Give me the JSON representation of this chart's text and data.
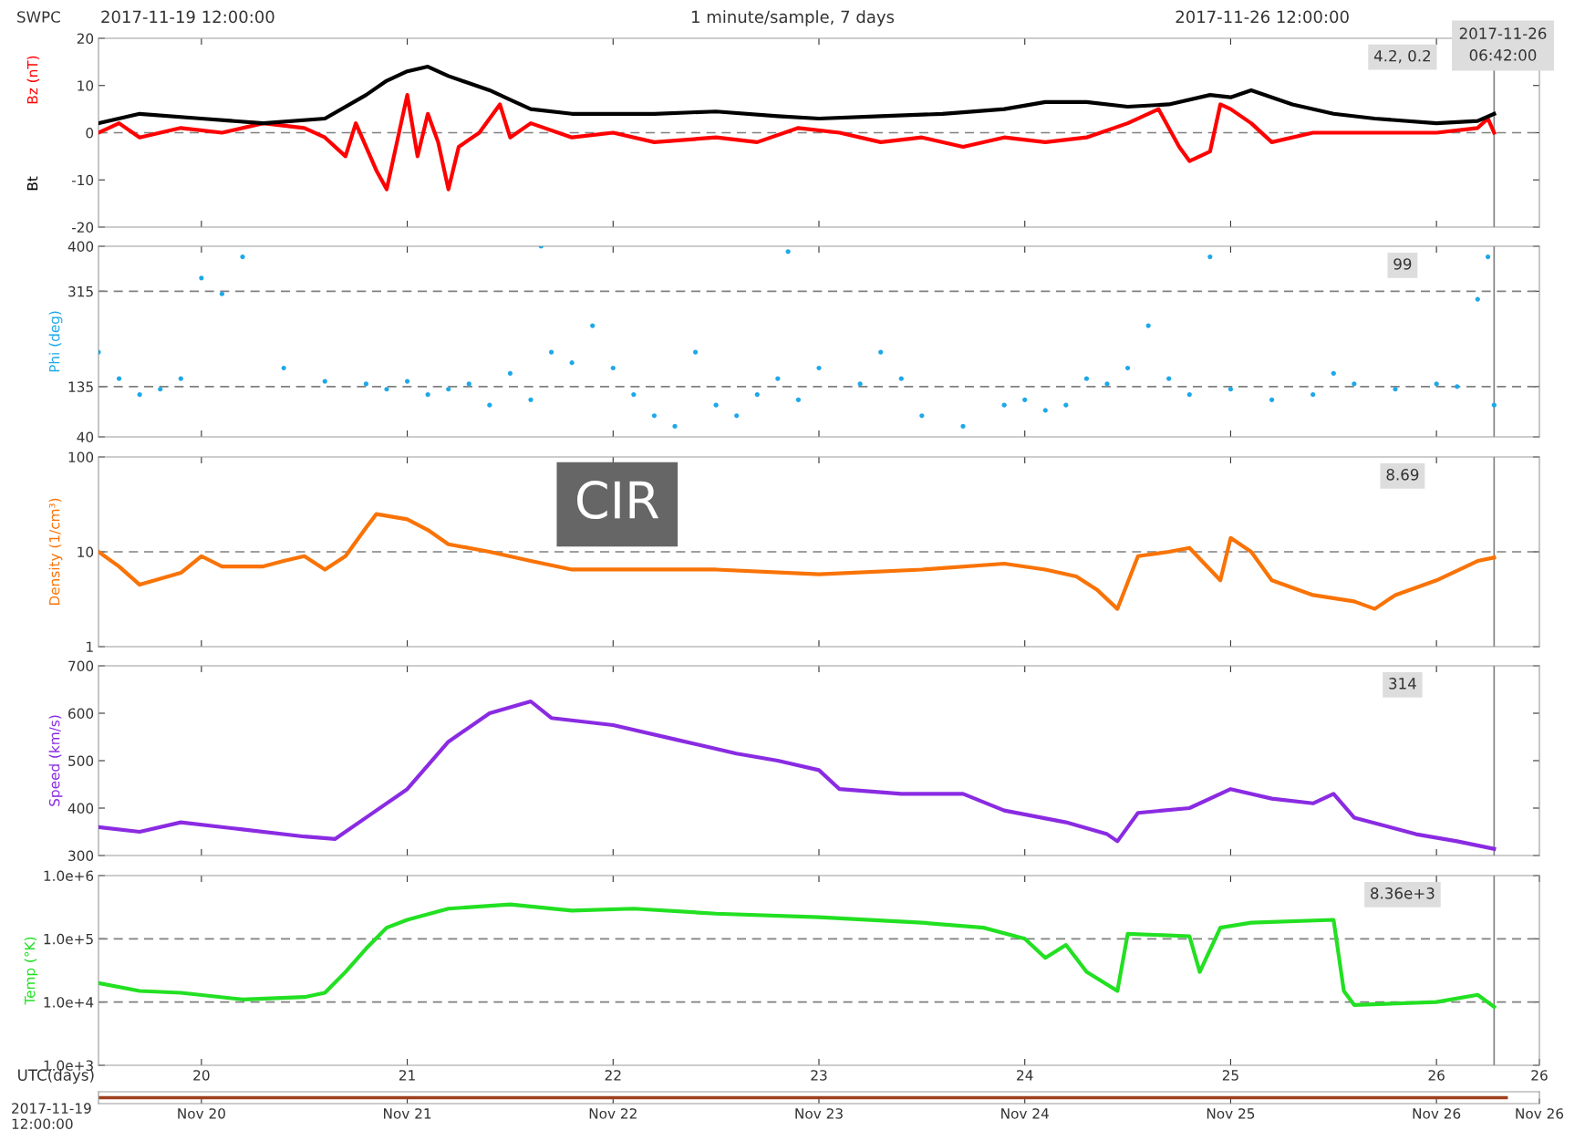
{
  "chart_data": [
    {
      "type": "line",
      "title": "1 minute/sample, 7 days",
      "xlim": [
        19.5,
        26.5
      ],
      "xticks": [
        {
          "value": 20,
          "label": null
        },
        {
          "value": 21,
          "label": null
        },
        {
          "value": 22,
          "label": null
        },
        {
          "value": 23,
          "label": null
        },
        {
          "value": 24,
          "label": null
        },
        {
          "value": 25,
          "label": null
        },
        {
          "value": 26,
          "label": null
        }
      ],
      "ylim": [
        -20,
        20
      ],
      "yticks": [
        -20,
        -10,
        0,
        10,
        20
      ],
      "tick_labels": "y",
      "line_style": "solid",
      "series": [
        {
          "name": "Bz (nT)",
          "color": "#ff0000",
          "x": [
            19.5,
            19.6,
            19.7,
            19.9,
            20.1,
            20.3,
            20.5,
            20.6,
            20.7,
            20.75,
            20.85,
            20.9,
            20.95,
            21.0,
            21.05,
            21.1,
            21.15,
            21.2,
            21.25,
            21.35,
            21.45,
            21.5,
            21.6,
            21.8,
            22.0,
            22.2,
            22.5,
            22.7,
            22.9,
            23.1,
            23.3,
            23.5,
            23.7,
            23.9,
            24.1,
            24.3,
            24.5,
            24.65,
            24.75,
            24.8,
            24.9,
            24.95,
            25.0,
            25.1,
            25.2,
            25.4,
            25.7,
            26.0,
            26.2,
            26.25,
            26.28
          ],
          "values": [
            0,
            2,
            -1,
            1,
            0,
            2,
            1,
            -1,
            -5,
            2,
            -8,
            -12,
            -2,
            8,
            -5,
            4,
            -2,
            -12,
            -3,
            0,
            6,
            -1,
            2,
            -1,
            0,
            -2,
            -1,
            -2,
            1,
            0,
            -2,
            -1,
            -3,
            -1,
            -2,
            -1,
            2,
            5,
            -3,
            -6,
            -4,
            6,
            5,
            2,
            -2,
            0,
            0,
            0,
            1,
            3,
            0
          ]
        },
        {
          "name": "Bt",
          "color": "#000000",
          "x": [
            19.5,
            19.7,
            20.0,
            20.3,
            20.6,
            20.8,
            20.9,
            21.0,
            21.1,
            21.2,
            21.4,
            21.5,
            21.6,
            21.8,
            22.0,
            22.2,
            22.5,
            22.8,
            23.0,
            23.3,
            23.6,
            23.9,
            24.1,
            24.3,
            24.5,
            24.7,
            24.9,
            25.0,
            25.1,
            25.3,
            25.5,
            25.7,
            26.0,
            26.2,
            26.28
          ],
          "values": [
            2,
            4,
            3,
            2,
            3,
            8,
            11,
            13,
            14,
            12,
            9,
            7,
            5,
            4,
            4,
            4,
            4.5,
            3.5,
            3,
            3.5,
            4,
            5,
            6.5,
            6.5,
            5.5,
            6,
            8,
            7.5,
            9,
            6,
            4,
            3,
            2,
            2.5,
            4
          ]
        }
      ],
      "ref_lines": [
        {
          "axis": "y",
          "value": 0,
          "color": "#808080",
          "line_style": "dashed"
        },
        {
          "axis": "x",
          "value": 26.28,
          "color": "#808080",
          "line_style": "solid"
        }
      ],
      "annotations": [
        "4.2, 0.2",
        "SWPC",
        "2017-11-19 12:00:00",
        "2017-11-26 12:00:00",
        "2017-11-26\n06:42:00"
      ]
    },
    {
      "type": "scatter",
      "marker": "circle",
      "ylabel": "Phi (deg)",
      "xlim": [
        19.5,
        26.5
      ],
      "xticks": [
        {
          "value": 20,
          "label": null
        },
        {
          "value": 21,
          "label": null
        },
        {
          "value": 22,
          "label": null
        },
        {
          "value": 23,
          "label": null
        },
        {
          "value": 24,
          "label": null
        },
        {
          "value": 25,
          "label": null
        },
        {
          "value": 26,
          "label": null
        }
      ],
      "ylim": [
        40,
        400
      ],
      "yticks": [
        40,
        135,
        315,
        400
      ],
      "tick_labels": "y",
      "series": [
        {
          "color": "#1ea8e8",
          "x": [
            19.5,
            19.6,
            19.7,
            19.8,
            19.9,
            20.0,
            20.1,
            20.2,
            20.4,
            20.6,
            20.8,
            20.9,
            21.0,
            21.1,
            21.2,
            21.3,
            21.4,
            21.5,
            21.6,
            21.65,
            21.7,
            21.8,
            21.9,
            22.0,
            22.1,
            22.2,
            22.3,
            22.4,
            22.5,
            22.6,
            22.7,
            22.8,
            22.85,
            22.9,
            23.0,
            23.2,
            23.3,
            23.4,
            23.5,
            23.7,
            23.9,
            24.0,
            24.1,
            24.2,
            24.3,
            24.4,
            24.5,
            24.6,
            24.7,
            24.8,
            24.9,
            25.0,
            25.2,
            25.4,
            25.5,
            25.6,
            25.8,
            26.0,
            26.1,
            26.2,
            26.25,
            26.28
          ],
          "values": [
            200,
            150,
            120,
            130,
            150,
            340,
            310,
            380,
            170,
            145,
            140,
            130,
            145,
            120,
            130,
            140,
            100,
            160,
            110,
            400,
            200,
            180,
            250,
            170,
            120,
            80,
            60,
            200,
            100,
            80,
            120,
            150,
            390,
            110,
            170,
            140,
            200,
            150,
            80,
            60,
            100,
            110,
            90,
            100,
            150,
            140,
            170,
            250,
            150,
            120,
            380,
            130,
            110,
            120,
            160,
            140,
            130,
            140,
            135,
            300,
            380,
            100
          ]
        }
      ],
      "ref_lines": [
        {
          "axis": "y",
          "value": 315,
          "color": "#808080",
          "line_style": "dashed"
        },
        {
          "axis": "y",
          "value": 135,
          "color": "#808080",
          "line_style": "dashed"
        },
        {
          "axis": "x",
          "value": 26.28,
          "color": "#808080",
          "line_style": "solid"
        }
      ],
      "annotations": [
        "99"
      ]
    },
    {
      "type": "line",
      "ylabel": "Density (1/cm³)",
      "log": true,
      "xlim": [
        19.5,
        26.5
      ],
      "xticks": [
        {
          "value": 20,
          "label": null
        },
        {
          "value": 21,
          "label": null
        },
        {
          "value": 22,
          "label": null
        },
        {
          "value": 23,
          "label": null
        },
        {
          "value": 24,
          "label": null
        },
        {
          "value": 25,
          "label": null
        },
        {
          "value": 26,
          "label": null
        }
      ],
      "ylim": [
        1,
        100
      ],
      "yticks": [
        1,
        10,
        100
      ],
      "tick_labels": "y",
      "line_style": "solid",
      "series": [
        {
          "color": "#f97306",
          "x": [
            19.5,
            19.6,
            19.7,
            19.9,
            20.0,
            20.1,
            20.3,
            20.4,
            20.5,
            20.6,
            20.7,
            20.8,
            20.85,
            21.0,
            21.1,
            21.2,
            21.4,
            21.6,
            21.8,
            22.0,
            22.5,
            23.0,
            23.5,
            23.9,
            24.1,
            24.25,
            24.35,
            24.45,
            24.55,
            24.7,
            24.8,
            24.95,
            25.0,
            25.1,
            25.2,
            25.4,
            25.6,
            25.7,
            25.8,
            26.0,
            26.2,
            26.28
          ],
          "values": [
            10,
            7,
            4.5,
            6,
            9,
            7,
            7,
            8,
            9,
            6.5,
            9,
            18,
            25,
            22,
            17,
            12,
            10,
            8,
            6.5,
            6.5,
            6.5,
            5.8,
            6.5,
            7.5,
            6.5,
            5.5,
            4,
            2.5,
            9,
            10,
            11,
            5,
            14,
            10,
            5,
            3.5,
            3,
            2.5,
            3.5,
            5,
            8,
            8.7
          ]
        }
      ],
      "ref_lines": [
        {
          "axis": "y",
          "value": 10,
          "color": "#808080",
          "line_style": "dashed"
        },
        {
          "axis": "x",
          "value": 26.28,
          "color": "#808080",
          "line_style": "solid"
        }
      ],
      "annotations": [
        "8.69",
        "CIR"
      ]
    },
    {
      "type": "line",
      "ylabel": "Speed (km/s)",
      "xlim": [
        19.5,
        26.5
      ],
      "xticks": [
        {
          "value": 20,
          "label": null
        },
        {
          "value": 21,
          "label": null
        },
        {
          "value": 22,
          "label": null
        },
        {
          "value": 23,
          "label": null
        },
        {
          "value": 24,
          "label": null
        },
        {
          "value": 25,
          "label": null
        },
        {
          "value": 26,
          "label": null
        }
      ],
      "ylim": [
        300,
        700
      ],
      "yticks": [
        300,
        400,
        500,
        600,
        700
      ],
      "tick_labels": "y",
      "line_style": "solid",
      "series": [
        {
          "color": "#8a2be2",
          "x": [
            19.5,
            19.7,
            19.9,
            20.2,
            20.5,
            20.65,
            20.8,
            21.0,
            21.2,
            21.4,
            21.6,
            21.7,
            22.0,
            22.3,
            22.6,
            22.8,
            23.0,
            23.1,
            23.4,
            23.7,
            23.9,
            24.2,
            24.4,
            24.45,
            24.55,
            24.8,
            25.0,
            25.2,
            25.4,
            25.5,
            25.6,
            25.9,
            26.1,
            26.28
          ],
          "values": [
            360,
            350,
            370,
            355,
            340,
            335,
            380,
            440,
            540,
            600,
            625,
            590,
            575,
            545,
            515,
            500,
            480,
            440,
            430,
            430,
            395,
            370,
            345,
            330,
            390,
            400,
            440,
            420,
            410,
            430,
            380,
            345,
            330,
            314
          ]
        }
      ],
      "ref_lines": [
        {
          "axis": "x",
          "value": 26.28,
          "color": "#808080",
          "line_style": "solid"
        }
      ],
      "annotations": [
        "314"
      ]
    },
    {
      "type": "line",
      "ylabel": "Temp (°K)",
      "xlabel": "UTC(days)",
      "log": true,
      "xlim": [
        19.5,
        26.5
      ],
      "xticks": [
        20,
        21,
        22,
        23,
        24,
        25,
        26,
        {
          "value": 26.5,
          "label": "26"
        }
      ],
      "ylim": [
        1000,
        1000000
      ],
      "yticks": [
        {
          "value": 1000,
          "label": "1.0e+3"
        },
        {
          "value": 10000,
          "label": "1.0e+4"
        },
        {
          "value": 100000,
          "label": "1.0e+5"
        },
        {
          "value": 1000000,
          "label": "1.0e+6"
        }
      ],
      "line_style": "solid",
      "series": [
        {
          "color": "#22e022",
          "x": [
            19.5,
            19.7,
            19.9,
            20.2,
            20.5,
            20.6,
            20.7,
            20.8,
            20.9,
            21.0,
            21.2,
            21.5,
            21.8,
            22.1,
            22.5,
            23.0,
            23.5,
            23.8,
            24.0,
            24.1,
            24.2,
            24.3,
            24.45,
            24.5,
            24.8,
            24.85,
            24.95,
            25.1,
            25.5,
            25.55,
            25.6,
            26.0,
            26.2,
            26.28
          ],
          "values": [
            20000,
            15000,
            14000,
            11000,
            12000,
            14000,
            30000,
            70000,
            150000,
            200000,
            300000,
            350000,
            280000,
            300000,
            250000,
            220000,
            180000,
            150000,
            100000,
            50000,
            80000,
            30000,
            15000,
            120000,
            110000,
            30000,
            150000,
            180000,
            200000,
            15000,
            9000,
            10000,
            13000,
            8400
          ]
        }
      ],
      "ref_lines": [
        {
          "axis": "y",
          "value": 100000,
          "color": "#808080",
          "line_style": "dashed"
        },
        {
          "axis": "y",
          "value": 10000,
          "color": "#808080",
          "line_style": "dashed"
        },
        {
          "axis": "x",
          "value": 26.28,
          "color": "#808080",
          "line_style": "solid"
        }
      ],
      "x2lim": [
        "2017-11-19T12:00",
        "2017-11-26T12:00"
      ],
      "x2ticks": [
        {
          "value": "2017-11-20",
          "label": "Nov 20"
        },
        {
          "value": "2017-11-21",
          "label": "Nov 21"
        },
        {
          "value": "2017-11-22",
          "label": "Nov 22"
        },
        {
          "value": "2017-11-23",
          "label": "Nov 23"
        },
        {
          "value": "2017-11-24",
          "label": "Nov 24"
        },
        {
          "value": "2017-11-25",
          "label": "Nov 25"
        },
        {
          "value": "2017-11-26",
          "label": "Nov 26"
        },
        {
          "value": "2017-11-26T12:00",
          "label": "Nov 26"
        }
      ],
      "annotations": [
        "8.36e+3",
        "2017-11-19\n12:00:00"
      ]
    }
  ]
}
